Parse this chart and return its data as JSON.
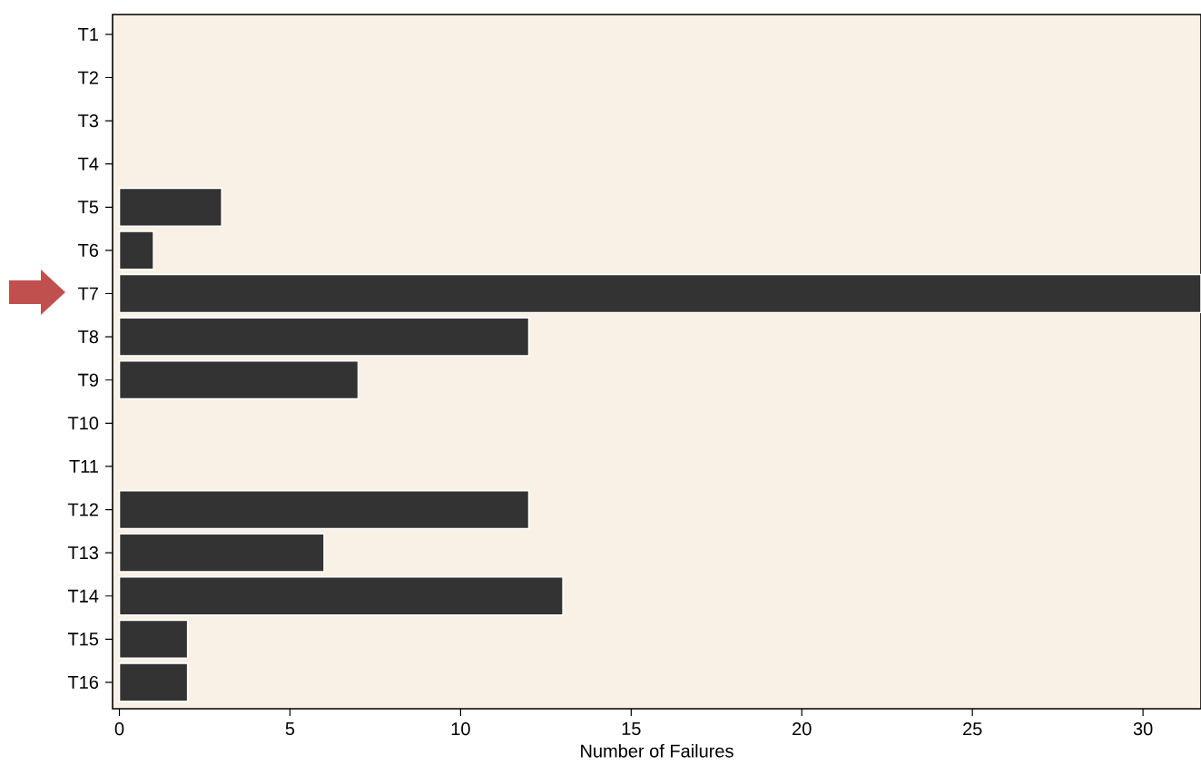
{
  "chart_data": {
    "type": "bar",
    "orientation": "horizontal",
    "xlabel": "Number of Failures",
    "categories": [
      "T1",
      "T2",
      "T3",
      "T4",
      "T5",
      "T6",
      "T7",
      "T8",
      "T9",
      "T10",
      "T11",
      "T12",
      "T13",
      "T14",
      "T15",
      "T16"
    ],
    "values": [
      0,
      0,
      0,
      0,
      3,
      1,
      31.7,
      12,
      7,
      0,
      0,
      12,
      6,
      13,
      2,
      2
    ],
    "color": "#333333",
    "xlim": [
      -0.2,
      31.7
    ],
    "xticks": [
      0,
      5,
      10,
      15,
      20,
      25,
      30
    ],
    "grid": false
  }
}
